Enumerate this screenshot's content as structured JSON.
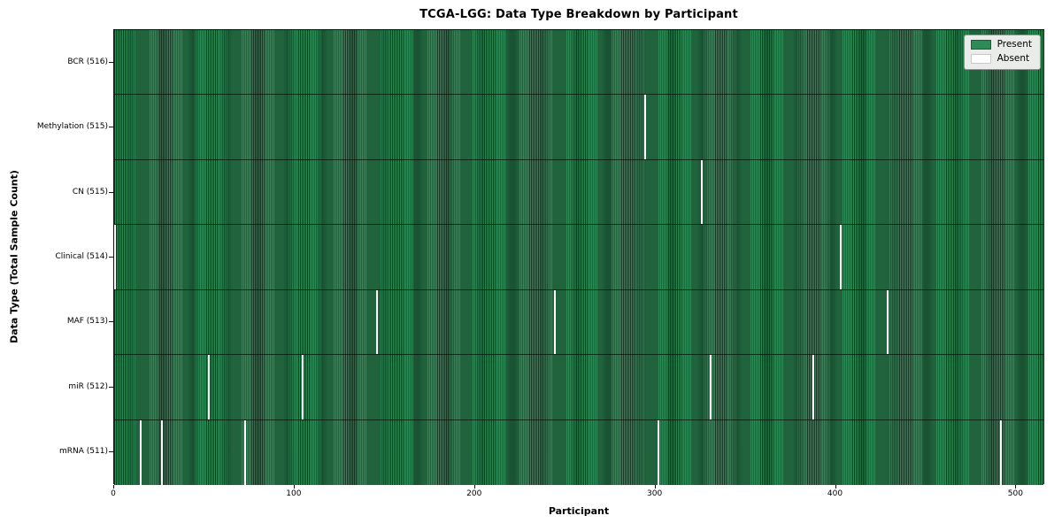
{
  "figure": {
    "title": "TCGA-LGG: Data Type Breakdown by Participant",
    "xlabel": "Participant",
    "ylabel": "Data Type (Total Sample Count)"
  },
  "legend": {
    "items": [
      {
        "name": "present",
        "label": "Present",
        "color": "#2e8b57"
      },
      {
        "name": "absent",
        "label": "Absent",
        "color": "#ffffff"
      }
    ]
  },
  "chart_data": {
    "type": "heatmap",
    "title": "TCGA-LGG: Data Type Breakdown by Participant",
    "xlabel": "Participant",
    "ylabel": "Data Type (Total Sample Count)",
    "legend": [
      "Present",
      "Absent"
    ],
    "legend_position": "upper right",
    "grid": false,
    "n_participants": 516,
    "xlim": [
      0,
      516
    ],
    "x_ticks": [
      0,
      100,
      200,
      300,
      400,
      500
    ],
    "colors": {
      "present": "#2e8b57",
      "cell_edge": "#14482a",
      "absent": "#ffffff"
    },
    "rows": [
      {
        "data_type": "BCR",
        "label": "BCR (516)",
        "present_count": 516,
        "absent_participants": []
      },
      {
        "data_type": "Methylation",
        "label": "Methylation (515)",
        "present_count": 515,
        "absent_participants": [
          294
        ]
      },
      {
        "data_type": "CN",
        "label": "CN (515)",
        "present_count": 515,
        "absent_participants": [
          325
        ]
      },
      {
        "data_type": "Clinical",
        "label": "Clinical (514)",
        "present_count": 514,
        "absent_participants": [
          0,
          402
        ]
      },
      {
        "data_type": "MAF",
        "label": "MAF (513)",
        "present_count": 513,
        "absent_participants": [
          145,
          244,
          428
        ]
      },
      {
        "data_type": "miR",
        "label": "miR (512)",
        "present_count": 512,
        "absent_participants": [
          52,
          104,
          330,
          387
        ]
      },
      {
        "data_type": "mRNA",
        "label": "mRNA (511)",
        "present_count": 511,
        "absent_participants": [
          14,
          26,
          72,
          301,
          491
        ]
      }
    ]
  }
}
